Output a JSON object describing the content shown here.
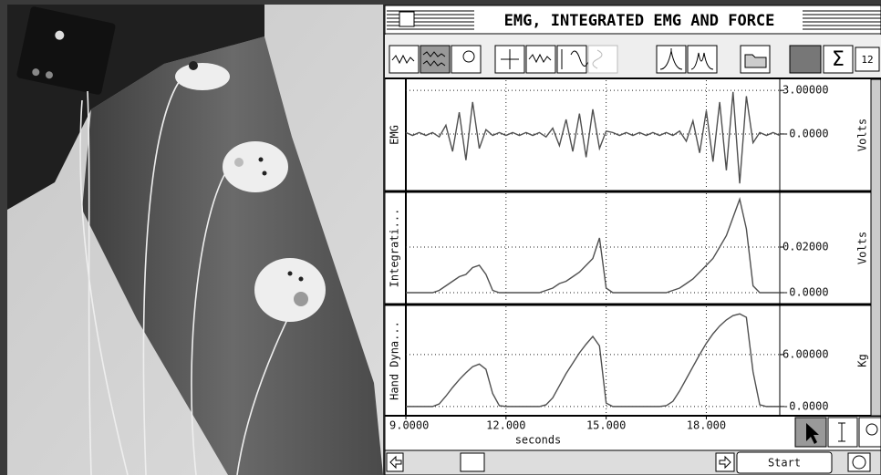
{
  "window_title": "EMG, INTEGRATED EMG AND FORCE",
  "toolbar": {
    "sum_button": "Σ",
    "number_button": "12"
  },
  "start_button": "Start",
  "chart_data": {
    "type": "line",
    "x": [
      9,
      9.2,
      9.4,
      9.6,
      9.8,
      10,
      10.2,
      10.4,
      10.6,
      10.8,
      11,
      11.2,
      11.4,
      11.6,
      11.8,
      12,
      12.2,
      12.4,
      12.6,
      12.8,
      13,
      13.2,
      13.4,
      13.6,
      13.8,
      14,
      14.2,
      14.4,
      14.6,
      14.8,
      15,
      15.2,
      15.4,
      15.6,
      15.8,
      16,
      16.2,
      16.4,
      16.6,
      16.8,
      17,
      17.2,
      17.4,
      17.6,
      17.8,
      18,
      18.2,
      18.4,
      18.6,
      18.8,
      19,
      19.2,
      19.4,
      19.6,
      19.8,
      20,
      20.2
    ],
    "xlim": [
      9,
      20.2
    ],
    "xticks": [
      {
        "value": 9,
        "label": "9.0000"
      },
      {
        "value": 12,
        "label": "12.000"
      },
      {
        "value": 15,
        "label": "15.000"
      },
      {
        "value": 18,
        "label": "18.000"
      }
    ],
    "xlabel": "seconds",
    "grid": true,
    "series": [
      {
        "name": "EMG",
        "unit": "Volts",
        "color": "#505050",
        "ylim": [
          -3.83,
          3.7
        ],
        "yticks": [
          {
            "value": 3,
            "label": "3.00000"
          },
          {
            "value": 0,
            "label": "-0.0000"
          }
        ],
        "values": [
          0.1,
          -0.1,
          0.1,
          -0.1,
          0.1,
          -0.2,
          0.6,
          -1.2,
          1.5,
          -1.8,
          2.2,
          -1.0,
          0.3,
          -0.1,
          0.1,
          -0.1,
          0.1,
          -0.1,
          0.1,
          -0.1,
          0.1,
          -0.2,
          0.4,
          -0.8,
          1.0,
          -1.2,
          1.4,
          -1.6,
          1.7,
          -1.0,
          0.2,
          0.1,
          -0.1,
          0.1,
          -0.1,
          0.1,
          -0.1,
          0.1,
          -0.1,
          0.1,
          -0.1,
          0.2,
          -0.5,
          0.9,
          -1.3,
          1.6,
          -1.9,
          2.2,
          -2.5,
          2.9,
          -3.4,
          2.6,
          -0.6,
          0.1,
          -0.1,
          0.1,
          -0.1
        ]
      },
      {
        "name": "Integrati...",
        "unit": "Volts",
        "color": "#505050",
        "ylim": [
          -0.0044,
          0.0436
        ],
        "yticks": [
          {
            "value": 0.02,
            "label": "0.02000"
          },
          {
            "value": 0,
            "label": "-0.0000"
          }
        ],
        "values": [
          0,
          0,
          0,
          0,
          0,
          0.001,
          0.003,
          0.005,
          0.007,
          0.008,
          0.011,
          0.012,
          0.008,
          0.001,
          0,
          0,
          0,
          0,
          0,
          0,
          0,
          0.001,
          0.002,
          0.004,
          0.005,
          0.007,
          0.009,
          0.012,
          0.015,
          0.024,
          0.002,
          0,
          0,
          0,
          0,
          0,
          0,
          0,
          0,
          0,
          0.001,
          0.002,
          0.004,
          0.006,
          0.009,
          0.012,
          0.015,
          0.02,
          0.025,
          0.033,
          0.041,
          0.028,
          0.003,
          0,
          0,
          0,
          0
        ]
      },
      {
        "name": "Hand Dyna...",
        "unit": "Kg",
        "color": "#505050",
        "ylim": [
          -0.96,
          11.57
        ],
        "yticks": [
          {
            "value": 6,
            "label": "6.00000"
          },
          {
            "value": 0,
            "label": "-0.0000"
          }
        ],
        "values": [
          0,
          0,
          0,
          0,
          0,
          0.3,
          1.2,
          2.2,
          3.1,
          3.9,
          4.6,
          4.9,
          4.3,
          1.5,
          0.1,
          0,
          0,
          0,
          0,
          0,
          0,
          0.2,
          1.0,
          2.4,
          3.8,
          5.0,
          6.2,
          7.2,
          8.1,
          7.0,
          0.4,
          0,
          0,
          0,
          0,
          0,
          0,
          0,
          0,
          0.1,
          0.6,
          1.8,
          3.2,
          4.6,
          6.0,
          7.3,
          8.4,
          9.3,
          10.0,
          10.5,
          10.7,
          10.3,
          4.0,
          0.2,
          0,
          0,
          0
        ]
      }
    ]
  }
}
